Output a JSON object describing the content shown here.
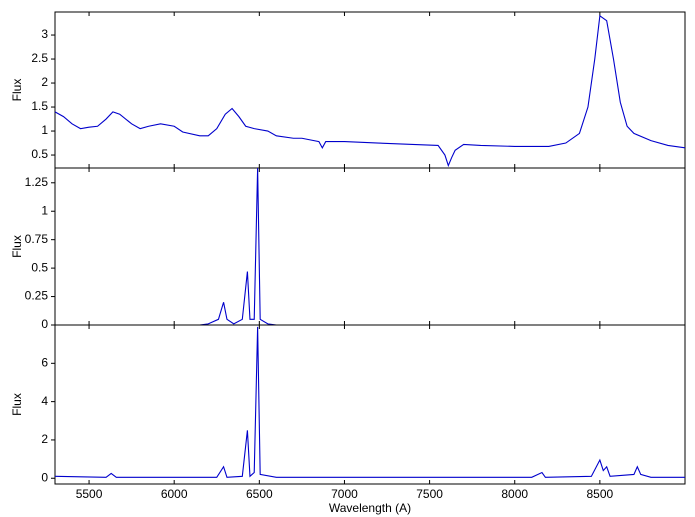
{
  "chart_data": [
    {
      "type": "line",
      "ylabel": "Flux",
      "x": [
        5300,
        5350,
        5400,
        5450,
        5500,
        5550,
        5600,
        5640,
        5680,
        5750,
        5800,
        5850,
        5920,
        6000,
        6050,
        6150,
        6200,
        6250,
        6300,
        6340,
        6380,
        6420,
        6470,
        6550,
        6600,
        6700,
        6750,
        6850,
        6870,
        6890,
        7000,
        7200,
        7400,
        7550,
        7590,
        7610,
        7630,
        7650,
        7700,
        7800,
        8000,
        8200,
        8300,
        8380,
        8430,
        8470,
        8500,
        8540,
        8580,
        8620,
        8660,
        8700,
        8800,
        8900,
        9000
      ],
      "series": [
        {
          "color": "#0000cc",
          "values": [
            1.4,
            1.3,
            1.15,
            1.05,
            1.08,
            1.1,
            1.25,
            1.4,
            1.35,
            1.15,
            1.05,
            1.1,
            1.15,
            1.1,
            0.98,
            0.9,
            0.9,
            1.05,
            1.35,
            1.47,
            1.3,
            1.1,
            1.05,
            1.0,
            0.9,
            0.85,
            0.85,
            0.78,
            0.65,
            0.78,
            0.78,
            0.75,
            0.72,
            0.7,
            0.5,
            0.28,
            0.45,
            0.6,
            0.72,
            0.7,
            0.68,
            0.68,
            0.75,
            0.95,
            1.5,
            2.5,
            3.4,
            3.3,
            2.5,
            1.6,
            1.1,
            0.95,
            0.8,
            0.7,
            0.65
          ]
        }
      ],
      "xlim": [
        5300,
        9000
      ],
      "ylim": [
        0.23,
        3.48
      ],
      "yticks": [
        0.5,
        1,
        1.5,
        2,
        2.5,
        3
      ]
    },
    {
      "type": "line",
      "ylabel": "Flux",
      "x": [
        6150,
        6200,
        6260,
        6290,
        6310,
        6350,
        6400,
        6430,
        6445,
        6470,
        6490,
        6505,
        6550,
        6600
      ],
      "series": [
        {
          "color": "#0000cc",
          "values": [
            0,
            0.01,
            0.05,
            0.2,
            0.05,
            0.01,
            0.05,
            0.47,
            0.05,
            0.05,
            1.38,
            0.05,
            0.01,
            0
          ]
        }
      ],
      "xlim": [
        5300,
        9000
      ],
      "ylim": [
        0,
        1.38
      ],
      "yticks": [
        0,
        0.25,
        0.5,
        0.75,
        1,
        1.25
      ]
    },
    {
      "type": "line",
      "ylabel": "Flux",
      "xlabel": "Wavelength (A)",
      "x": [
        5300,
        5600,
        5630,
        5660,
        6000,
        6250,
        6290,
        6310,
        6400,
        6430,
        6445,
        6470,
        6490,
        6505,
        6600,
        7000,
        7500,
        8100,
        8160,
        8180,
        8450,
        8500,
        8520,
        8540,
        8560,
        8700,
        8720,
        8740,
        8800,
        9000
      ],
      "series": [
        {
          "color": "#0000cc",
          "values": [
            0.1,
            0.05,
            0.25,
            0.05,
            0.05,
            0.05,
            0.6,
            0.05,
            0.1,
            2.5,
            0.1,
            0.3,
            7.9,
            0.2,
            0.05,
            0.05,
            0.05,
            0.05,
            0.3,
            0.05,
            0.1,
            0.95,
            0.4,
            0.6,
            0.1,
            0.2,
            0.6,
            0.2,
            0.05,
            0.05
          ]
        }
      ],
      "xlim": [
        5300,
        9000
      ],
      "ylim": [
        -0.3,
        8
      ],
      "yticks": [
        0,
        2,
        4,
        6
      ],
      "xticks": [
        5500,
        6000,
        6500,
        7000,
        7500,
        8000,
        8500
      ]
    }
  ]
}
